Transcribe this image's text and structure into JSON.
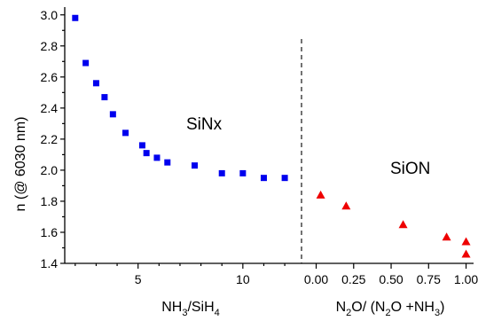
{
  "chart_data": [
    {
      "type": "scatter",
      "title": "",
      "ylabel": "n (@ 6030 nm)",
      "ylim": [
        1.4,
        3.05
      ],
      "yticks": [
        "1.4",
        "1.6",
        "1.8",
        "2.0",
        "2.2",
        "2.4",
        "2.6",
        "2.8",
        "3.0"
      ],
      "grid": false,
      "annotations": [
        {
          "text": "SiNx",
          "region": "left-middle"
        }
      ],
      "x_axis": {
        "label_main": "NH",
        "label_sub1": "3",
        "label_mid": "/SiH",
        "label_sub2": "4",
        "xlim": [
          1.5,
          12.8
        ],
        "ticks": [
          "5",
          "10"
        ]
      },
      "series": [
        {
          "marker": "square",
          "color": "#0000ee",
          "x": [
            2.0,
            2.5,
            3.0,
            3.4,
            3.8,
            4.4,
            5.2,
            5.4,
            5.9,
            6.4,
            7.7,
            9.0,
            10.0,
            11.0,
            12.0
          ],
          "y": [
            2.98,
            2.69,
            2.56,
            2.47,
            2.36,
            2.24,
            2.16,
            2.11,
            2.08,
            2.05,
            2.03,
            1.98,
            1.98,
            1.95,
            1.95
          ]
        }
      ]
    },
    {
      "type": "scatter",
      "title": "",
      "grid": false,
      "annotations": [
        {
          "text": "SiON",
          "region": "right-middle"
        }
      ],
      "x_axis": {
        "label_pre": "N",
        "label_sub1": "2",
        "label_mid": "O/ (N",
        "label_sub2": "2",
        "label_mid2": "O +NH",
        "label_sub3": "3",
        "label_post": ")",
        "xlim": [
          -0.08,
          1.05
        ],
        "ticks": [
          "0.00",
          "0.25",
          "0.50",
          "0.75",
          "1.00"
        ]
      },
      "series": [
        {
          "marker": "triangle",
          "color": "#ee0000",
          "x": [
            0.03,
            0.2,
            0.58,
            0.87,
            1.0,
            1.0
          ],
          "y": [
            1.84,
            1.77,
            1.65,
            1.57,
            1.54,
            1.46
          ]
        }
      ]
    }
  ]
}
